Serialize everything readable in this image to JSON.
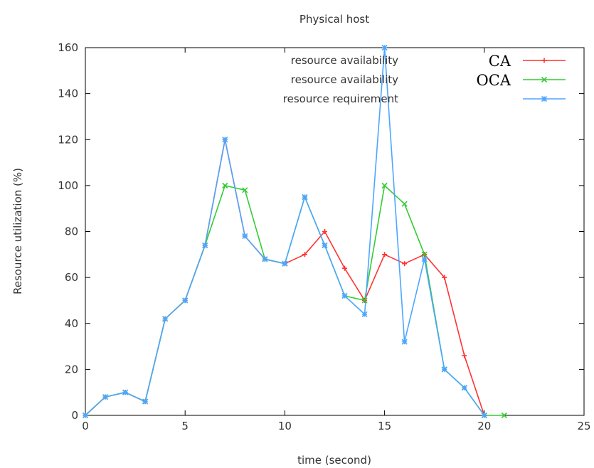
{
  "chart_data": {
    "type": "line",
    "title": "Physical host",
    "xlabel": "time (second)",
    "ylabel": "Resource utilization (%)",
    "xlim": [
      0,
      25
    ],
    "ylim": [
      0,
      160
    ],
    "xticks": [
      0,
      5,
      10,
      15,
      20,
      25
    ],
    "yticks": [
      0,
      20,
      40,
      60,
      80,
      100,
      120,
      140,
      160
    ],
    "grid": false,
    "legend_position": "top-right",
    "series": [
      {
        "name": "resource availability",
        "tag": "CA",
        "color": "#ff3333",
        "marker": "plus",
        "x": [
          0,
          1,
          2,
          3,
          4,
          5,
          6,
          7,
          8,
          9,
          10,
          11,
          12,
          13,
          14,
          15,
          16,
          17,
          18,
          19,
          20
        ],
        "y": [
          0,
          8,
          10,
          6,
          42,
          50,
          74,
          120,
          78,
          68,
          66,
          70,
          80,
          64,
          50,
          70,
          66,
          70,
          60,
          26,
          0
        ]
      },
      {
        "name": "resource availability",
        "tag": "OCA",
        "color": "#33cc33",
        "marker": "x",
        "x": [
          0,
          1,
          2,
          3,
          4,
          5,
          6,
          7,
          8,
          9,
          10,
          11,
          12,
          13,
          14,
          15,
          16,
          17,
          18,
          19,
          20,
          21
        ],
        "y": [
          0,
          8,
          10,
          6,
          42,
          50,
          74,
          100,
          98,
          68,
          66,
          95,
          74,
          52,
          50,
          100,
          92,
          70,
          20,
          12,
          0,
          0
        ]
      },
      {
        "name": "resource requirement",
        "tag": "",
        "color": "#4da6ff",
        "marker": "star",
        "x": [
          0,
          1,
          2,
          3,
          4,
          5,
          6,
          7,
          8,
          9,
          10,
          11,
          12,
          13,
          14,
          15,
          16,
          17,
          18,
          19,
          20
        ],
        "y": [
          0,
          8,
          10,
          6,
          42,
          50,
          74,
          120,
          78,
          68,
          66,
          95,
          74,
          52,
          44,
          160,
          32,
          68,
          20,
          12,
          0
        ]
      }
    ]
  }
}
